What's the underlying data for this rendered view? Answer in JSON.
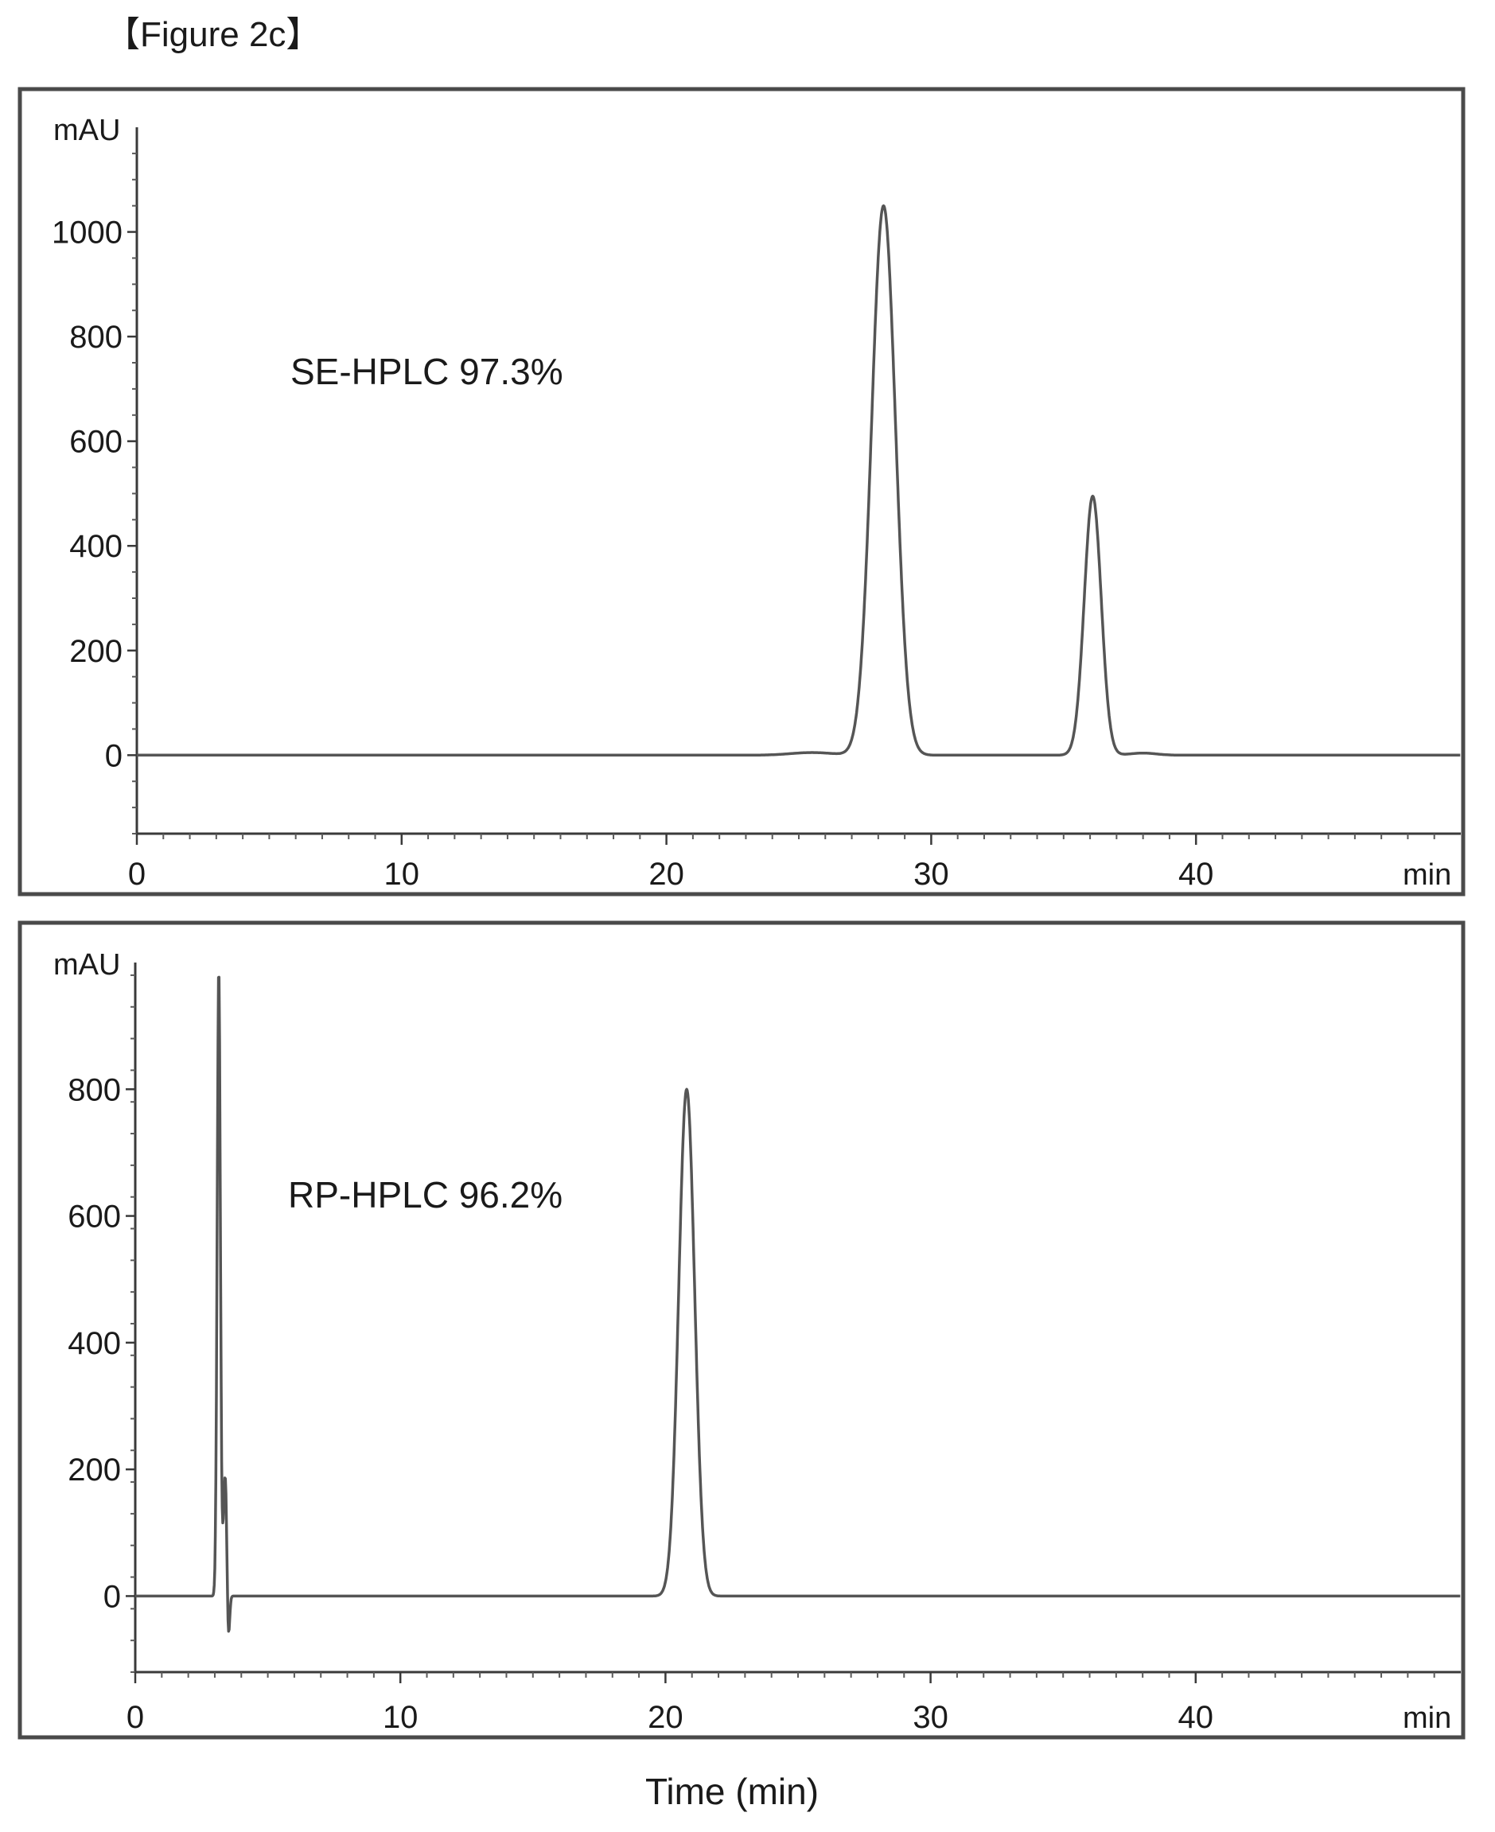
{
  "figure_label": "【Figure 2c】",
  "x_axis_title": "Time (min)",
  "chart_data": [
    {
      "type": "line",
      "annotation": "SE-HPLC 97.3%",
      "xlabel": "min",
      "ylabel": "mAU",
      "xlim": [
        0,
        50
      ],
      "ylim": [
        -150,
        1200
      ],
      "xticks": [
        0,
        10,
        20,
        30,
        40
      ],
      "yticks": [
        0,
        200,
        400,
        600,
        800,
        1000
      ],
      "series": [
        {
          "peaks": [
            {
              "x": 28.2,
              "y": 1050,
              "width": 0.45
            },
            {
              "x": 36.1,
              "y": 495,
              "width": 0.32
            },
            {
              "x": 25.5,
              "y": 5,
              "width": 0.8
            },
            {
              "x": 38.0,
              "y": 4,
              "width": 0.5
            }
          ],
          "baseline": 0
        }
      ]
    },
    {
      "type": "line",
      "annotation": "RP-HPLC 96.2%",
      "xlabel": "min",
      "ylabel": "mAU",
      "xlim": [
        0,
        50
      ],
      "ylim": [
        -120,
        1000
      ],
      "xticks": [
        0,
        10,
        20,
        30,
        40
      ],
      "yticks": [
        0,
        200,
        400,
        600,
        800
      ],
      "series": [
        {
          "peaks": [
            {
              "x": 3.15,
              "y": 990,
              "width": 0.06
            },
            {
              "x": 3.4,
              "y": 200,
              "width": 0.07
            },
            {
              "x": 3.5,
              "y": -110,
              "width": 0.05
            },
            {
              "x": 20.8,
              "y": 800,
              "width": 0.3
            }
          ],
          "baseline": 0
        }
      ]
    }
  ]
}
